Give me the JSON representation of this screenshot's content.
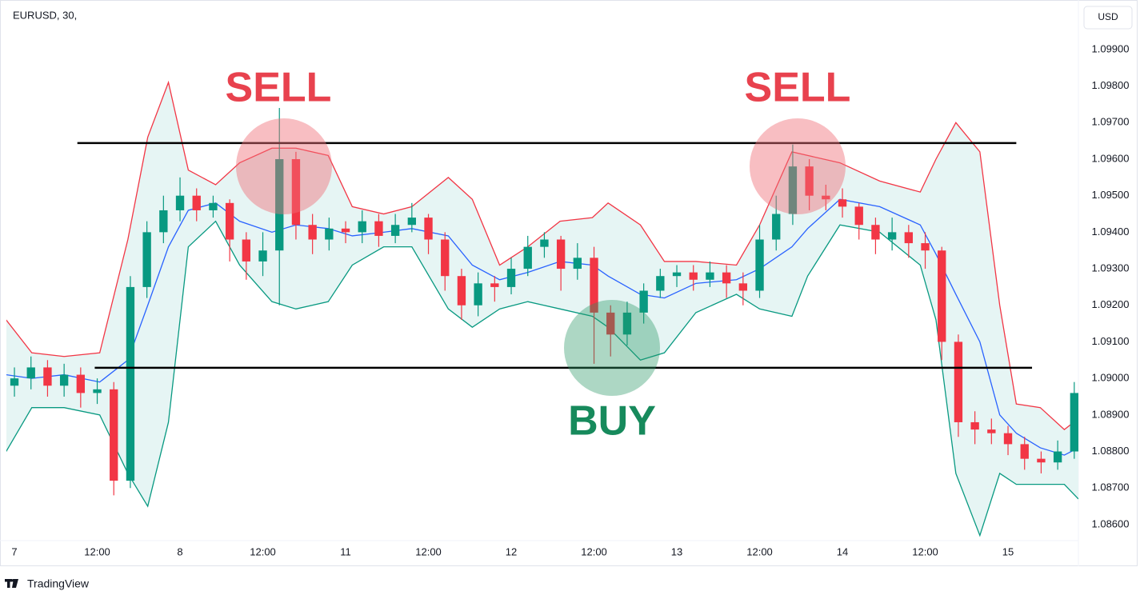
{
  "chart_data": {
    "type": "candlestick",
    "title": "EURUSD, 30,",
    "currency": "USD",
    "brand": "TradingView",
    "up_color": "#089981",
    "down_color": "#f23645",
    "x": [
      0,
      0.2,
      0.4,
      0.6,
      0.8,
      1,
      1.2,
      1.4,
      1.6,
      1.8,
      2,
      2.2,
      2.4,
      2.6,
      2.8,
      3,
      3.2,
      3.4,
      3.6,
      3.8,
      4,
      4.2,
      4.4,
      4.6,
      4.8,
      5,
      5.2,
      5.4,
      5.6,
      5.8,
      6,
      6.2,
      6.4,
      6.6,
      6.8,
      7,
      7.2,
      7.4,
      7.6,
      7.8,
      8,
      8.2,
      8.4,
      8.6,
      8.8,
      9,
      9.2,
      9.4,
      9.6,
      9.8,
      10,
      10.2,
      10.4,
      10.6,
      10.8,
      11,
      11.2,
      11.4,
      11.6,
      11.8,
      12,
      12.2,
      12.4,
      12.6,
      12.8
    ],
    "open": [
      1.0898,
      1.09,
      1.0903,
      1.0898,
      1.0901,
      1.0896,
      1.0897,
      1.0872,
      1.0925,
      1.094,
      1.0946,
      1.095,
      1.0946,
      1.0948,
      1.0938,
      1.0932,
      1.0935,
      1.096,
      1.0942,
      1.0938,
      1.0941,
      1.094,
      1.0943,
      1.0939,
      1.0942,
      1.0944,
      1.0938,
      1.0928,
      1.092,
      1.0926,
      1.0925,
      1.093,
      1.0936,
      1.0938,
      1.093,
      1.0933,
      1.0918,
      1.0912,
      1.0918,
      1.0924,
      1.0928,
      1.0929,
      1.0927,
      1.0929,
      1.0926,
      1.0924,
      1.0938,
      1.0945,
      1.0958,
      1.095,
      1.0949,
      1.0947,
      1.0942,
      1.0938,
      1.094,
      1.0937,
      1.0935,
      1.091,
      1.0888,
      1.0886,
      1.0885,
      1.0882,
      1.0878,
      1.0877,
      1.088
    ],
    "high": [
      1.0903,
      1.0906,
      1.0905,
      1.0904,
      1.0903,
      1.09,
      1.0899,
      1.0928,
      1.0943,
      1.095,
      1.0955,
      1.0952,
      1.095,
      1.0949,
      1.094,
      1.094,
      1.0974,
      1.0962,
      1.0945,
      1.0944,
      1.0943,
      1.0946,
      1.0945,
      1.0945,
      1.0948,
      1.0945,
      1.094,
      1.093,
      1.0929,
      1.0928,
      1.0933,
      1.0939,
      1.094,
      1.0939,
      1.0937,
      1.0936,
      1.092,
      1.0921,
      1.0926,
      1.093,
      1.0931,
      1.0931,
      1.0932,
      1.0931,
      1.0929,
      1.0942,
      1.095,
      1.0964,
      1.096,
      1.0953,
      1.0952,
      1.0948,
      1.0944,
      1.0944,
      1.0942,
      1.094,
      1.0936,
      1.0912,
      1.0891,
      1.0889,
      1.0887,
      1.0884,
      1.088,
      1.0883,
      1.0899
    ],
    "low": [
      1.0895,
      1.0897,
      1.0895,
      1.0895,
      1.0892,
      1.0893,
      1.0868,
      1.087,
      1.0922,
      1.0937,
      1.0943,
      1.0943,
      1.0944,
      1.0932,
      1.0927,
      1.0928,
      1.092,
      1.0938,
      1.0934,
      1.0935,
      1.0937,
      1.0937,
      1.0936,
      1.0937,
      1.094,
      1.0934,
      1.0924,
      1.0916,
      1.0917,
      1.0921,
      1.0923,
      1.0928,
      1.0933,
      1.0924,
      1.0927,
      1.0904,
      1.0906,
      1.0909,
      1.0915,
      1.0922,
      1.0925,
      1.0924,
      1.0925,
      1.0922,
      1.092,
      1.0922,
      1.0935,
      1.0942,
      1.0946,
      1.0946,
      1.0944,
      1.0938,
      1.0934,
      1.0935,
      1.0933,
      1.093,
      1.0905,
      1.0884,
      1.0882,
      1.0882,
      1.0879,
      1.0875,
      1.0874,
      1.0875,
      1.0878
    ],
    "close": [
      1.09,
      1.0903,
      1.0898,
      1.0901,
      1.0896,
      1.0897,
      1.0872,
      1.0925,
      1.094,
      1.0946,
      1.095,
      1.0946,
      1.0948,
      1.0938,
      1.0932,
      1.0935,
      1.096,
      1.0942,
      1.0938,
      1.0941,
      1.094,
      1.0943,
      1.0939,
      1.0942,
      1.0944,
      1.0938,
      1.0928,
      1.092,
      1.0926,
      1.0925,
      1.093,
      1.0936,
      1.0938,
      1.093,
      1.0933,
      1.0918,
      1.0912,
      1.0918,
      1.0924,
      1.0928,
      1.0929,
      1.0927,
      1.0929,
      1.0926,
      1.0924,
      1.0938,
      1.0945,
      1.0958,
      1.095,
      1.0949,
      1.0947,
      1.0942,
      1.0938,
      1.094,
      1.0937,
      1.0935,
      1.091,
      1.0888,
      1.0886,
      1.0885,
      1.0882,
      1.0878,
      1.0877,
      1.088,
      1.0896
    ],
    "band_x": [
      -0.1,
      0.21,
      0.6,
      1.03,
      1.37,
      1.61,
      1.86,
      2.1,
      2.43,
      2.72,
      3.11,
      3.4,
      3.79,
      4.08,
      4.46,
      4.8,
      5.24,
      5.53,
      5.86,
      6.2,
      6.59,
      6.98,
      7.17,
      7.56,
      7.85,
      8.23,
      8.72,
      9,
      9.39,
      9.58,
      9.97,
      10.45,
      10.94,
      11.13,
      11.37,
      11.66,
      11.9,
      12.1,
      12.39,
      12.68,
      12.85
    ],
    "bands": [
      {
        "color": "#f23645",
        "values": [
          1.0916,
          1.0907,
          1.0906,
          1.0907,
          1.0938,
          1.0966,
          1.0981,
          1.0957,
          1.0953,
          1.0959,
          1.0963,
          1.0963,
          1.0961,
          1.0947,
          1.0945,
          1.0947,
          1.0955,
          1.0949,
          1.0931,
          1.0936,
          1.0943,
          1.0944,
          1.0948,
          1.0942,
          1.0932,
          1.0932,
          1.0931,
          1.0942,
          1.0962,
          1.0961,
          1.0959,
          1.0954,
          1.0951,
          1.096,
          1.097,
          1.0962,
          1.092,
          1.0893,
          1.0892,
          1.0886,
          1.0889
        ]
      },
      {
        "color": "#2962ff",
        "values": [
          1.0901,
          1.09,
          1.0901,
          1.0899,
          1.0905,
          1.092,
          1.0936,
          1.0946,
          1.0948,
          1.0943,
          1.094,
          1.0942,
          1.0941,
          1.0939,
          1.094,
          1.0941,
          1.0939,
          1.0931,
          1.0927,
          1.0929,
          1.0932,
          1.0931,
          1.0928,
          1.0923,
          1.0922,
          1.0926,
          1.0927,
          1.093,
          1.0936,
          1.0941,
          1.0949,
          1.0947,
          1.0942,
          1.0934,
          1.0923,
          1.091,
          1.089,
          1.0885,
          1.0881,
          1.0879,
          1.0881
        ]
      },
      {
        "color": "#089981",
        "values": [
          1.088,
          1.0892,
          1.0892,
          1.089,
          1.0874,
          1.0865,
          1.0888,
          1.0936,
          1.0943,
          1.0931,
          1.0921,
          1.0919,
          1.0921,
          1.0931,
          1.0936,
          1.0936,
          1.0919,
          1.0914,
          1.0919,
          1.0921,
          1.0919,
          1.0917,
          1.0914,
          1.0905,
          1.0907,
          1.0918,
          1.0923,
          1.0919,
          1.0917,
          1.0928,
          1.0942,
          1.094,
          1.0931,
          1.0916,
          1.0874,
          1.0857,
          1.0874,
          1.0871,
          1.0871,
          1.0871,
          1.0867
        ]
      }
    ],
    "band_fill": "#e6f5f4",
    "levels": [
      {
        "value": 1.09644,
        "xrange": [
          0.76,
          12.1
        ]
      },
      {
        "value": 1.09029,
        "xrange": [
          0.97,
          12.29
        ]
      }
    ],
    "annotations": [
      "SELL",
      "SELL",
      "BUY"
    ],
    "xlim": [
      -0.097,
      12.85
    ],
    "ylim": [
      1.08556,
      1.10018
    ],
    "xticks": [
      {
        "value": 0,
        "label": "7"
      },
      {
        "value": 1,
        "label": "12:00"
      },
      {
        "value": 2,
        "label": "8"
      },
      {
        "value": 3,
        "label": "12:00"
      },
      {
        "value": 4,
        "label": "11"
      },
      {
        "value": 5,
        "label": "12:00"
      },
      {
        "value": 6,
        "label": "12"
      },
      {
        "value": 7,
        "label": "12:00"
      },
      {
        "value": 8,
        "label": "13"
      },
      {
        "value": 9,
        "label": "12:00"
      },
      {
        "value": 10,
        "label": "14"
      },
      {
        "value": 11,
        "label": "12:00"
      },
      {
        "value": 12,
        "label": "15"
      }
    ],
    "yticks": [
      {
        "value": 1.099,
        "label": "1.09900"
      },
      {
        "value": 1.098,
        "label": "1.09800"
      },
      {
        "value": 1.097,
        "label": "1.09700"
      },
      {
        "value": 1.096,
        "label": "1.09600"
      },
      {
        "value": 1.095,
        "label": "1.09500"
      },
      {
        "value": 1.094,
        "label": "1.09400"
      },
      {
        "value": 1.093,
        "label": "1.09300"
      },
      {
        "value": 1.092,
        "label": "1.09200"
      },
      {
        "value": 1.091,
        "label": "1.09100"
      },
      {
        "value": 1.09,
        "label": "1.09000"
      },
      {
        "value": 1.089,
        "label": "1.08900"
      },
      {
        "value": 1.088,
        "label": "1.08800"
      },
      {
        "value": 1.087,
        "label": "1.08700"
      },
      {
        "value": 1.086,
        "label": "1.08600"
      }
    ]
  }
}
